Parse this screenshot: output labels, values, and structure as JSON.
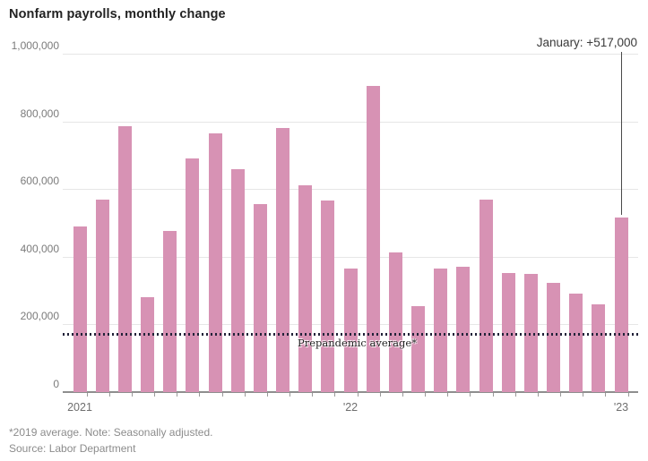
{
  "title": "Nonfarm payrolls, monthly change",
  "footer": {
    "note": "*2019 average. Note: Seasonally adjusted.",
    "source": "Source: Labor Department"
  },
  "colors": {
    "bar": "#d792b4",
    "grid": "#e6e6e6",
    "axis": "#8e8e8e",
    "reference_dots": "#23233a",
    "annotation_line": "#4a4a4a"
  },
  "chart_data": {
    "type": "bar",
    "title": "Nonfarm payrolls, monthly change",
    "x": [
      "Jan 2021",
      "Feb 2021",
      "Mar 2021",
      "Apr 2021",
      "May 2021",
      "Jun 2021",
      "Jul 2021",
      "Aug 2021",
      "Sep 2021",
      "Oct 2021",
      "Nov 2021",
      "Dec 2021",
      "Jan 2022",
      "Feb 2022",
      "Mar 2022",
      "Apr 2022",
      "May 2022",
      "Jun 2022",
      "Jul 2022",
      "Aug 2022",
      "Sep 2022",
      "Oct 2022",
      "Nov 2022",
      "Dec 2022",
      "Jan 2023"
    ],
    "values": [
      490000,
      570000,
      785000,
      280000,
      475000,
      690000,
      765000,
      660000,
      555000,
      780000,
      610000,
      565000,
      364000,
      904000,
      414000,
      254000,
      364000,
      370000,
      568000,
      352000,
      350000,
      324000,
      290000,
      260000,
      517000
    ],
    "xlabel": "",
    "ylabel": "",
    "ylim": [
      0,
      1000000
    ],
    "grid": true,
    "legend": "none",
    "y_ticks": [
      0,
      200000,
      400000,
      600000,
      800000,
      1000000
    ],
    "y_tick_labels": [
      "0",
      "200,000",
      "400,000",
      "600,000",
      "800,000",
      "1,000,000"
    ],
    "x_year_labels": [
      {
        "label": "2021",
        "index": 0
      },
      {
        "label": "'22",
        "index": 12
      },
      {
        "label": "'23",
        "index": 24
      }
    ],
    "reference_line": {
      "label": "Prepandemic average*",
      "value": 172000
    },
    "annotation": {
      "text": "January: +517,000",
      "index": 24,
      "value": 517000
    },
    "bar_color": "#d792b4"
  }
}
